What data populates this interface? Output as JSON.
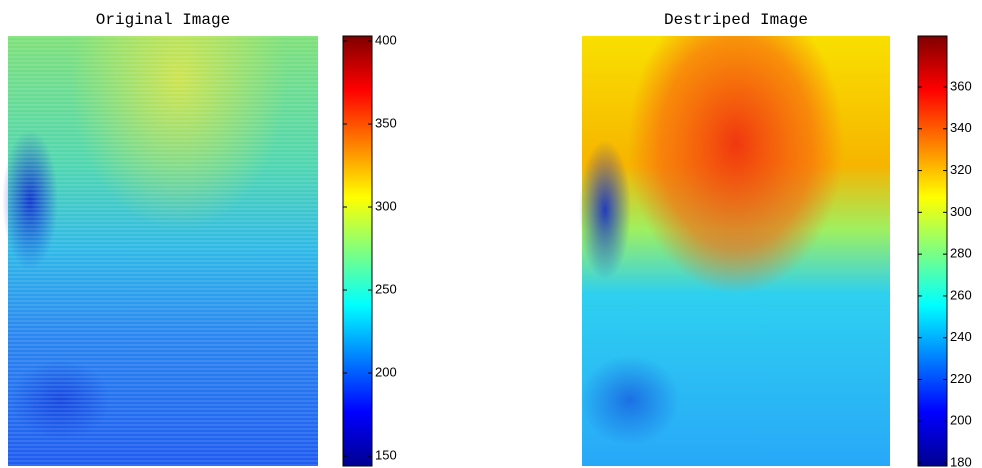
{
  "chart_data": [
    {
      "type": "heatmap",
      "title": "Original Image",
      "colormap": "jet",
      "clim": [
        144,
        403
      ],
      "cticks": [
        150,
        200,
        250,
        300,
        350,
        400
      ]
    },
    {
      "type": "heatmap",
      "title": "Destriped Image",
      "colormap": "jet",
      "clim": [
        178.6,
        384.4
      ],
      "cticks": [
        180,
        200,
        220,
        240,
        260,
        280,
        300,
        320,
        340,
        360
      ]
    }
  ]
}
